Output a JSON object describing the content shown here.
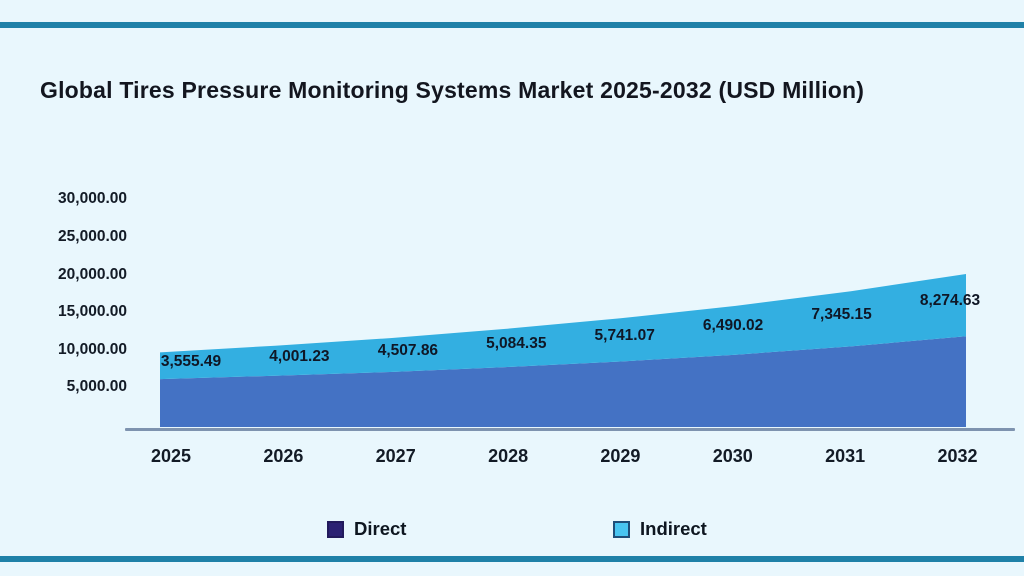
{
  "header": {
    "title": "Global Tires Pressure Monitoring Systems Market 2025-2032 (USD Million)"
  },
  "chart_data": {
    "type": "area",
    "stacked": true,
    "title": "Global Tires Pressure Monitoring Systems Market 2025-2032 (USD Million)",
    "categories": [
      "2025",
      "2026",
      "2027",
      "2028",
      "2029",
      "2030",
      "2031",
      "2032"
    ],
    "series": [
      {
        "name": "Direct",
        "color": "#4472C4",
        "estimated": true,
        "values": [
          6100,
          6550,
          7050,
          7700,
          8450,
          9350,
          10450,
          11800
        ]
      },
      {
        "name": "Indirect",
        "color": "#33AFE1",
        "estimated": false,
        "values": [
          3555.49,
          4001.23,
          4507.86,
          5084.35,
          5741.07,
          6490.02,
          7345.15,
          8274.63
        ]
      }
    ],
    "data_labels": [
      "3,555.49",
      "4,001.23",
      "4,507.86",
      "5,084.35",
      "5,741.07",
      "6,490.02",
      "7,345.15",
      "8,274.63"
    ],
    "data_label_series": "Indirect",
    "y_ticks": [
      {
        "value": 30000,
        "label": "30,000.00"
      },
      {
        "value": 25000,
        "label": "25,000.00"
      },
      {
        "value": 20000,
        "label": "20,000.00"
      },
      {
        "value": 15000,
        "label": "15,000.00"
      },
      {
        "value": 10000,
        "label": "10,000.00"
      },
      {
        "value": 5000,
        "label": "5,000.00"
      }
    ],
    "ylim": [
      0,
      32500
    ],
    "xlabel": "",
    "ylabel": "",
    "grid": false,
    "legend_position": "bottom"
  },
  "legend": {
    "items": [
      {
        "label": "Direct",
        "swatch_color": "#2B2173"
      },
      {
        "label": "Indirect",
        "swatch_color": "#49C5F1"
      }
    ]
  },
  "colors": {
    "background": "#E9F7FD",
    "horizontal_rule": "#1F81A8",
    "direct_area": "#4472C4",
    "indirect_area": "#33AFE1",
    "direct_legend_swatch": "#2B2173",
    "indirect_legend_swatch": "#49C5F1",
    "axis_line": "#7E93AF",
    "text": "#131B26"
  }
}
